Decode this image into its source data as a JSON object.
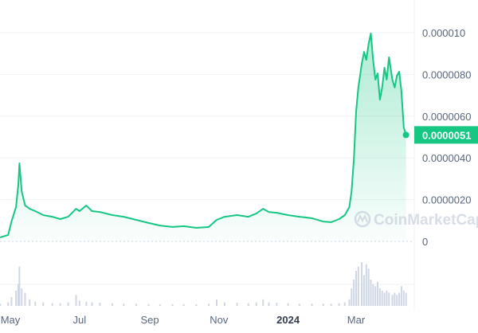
{
  "chart_data": {
    "type": "area",
    "title": "",
    "xlabel": "",
    "ylabel": "",
    "ylim": [
      0,
      1e-05
    ],
    "grid": true,
    "colors": {
      "line": "#16c784",
      "volume": "#cfd6e4",
      "grid": "#eff2f5",
      "axis_text": "#58667e"
    },
    "y_ticks": [
      "0",
      "0.0000020",
      "0.0000040",
      "0.0000060",
      "0.0000080",
      "0.000010"
    ],
    "y_tick_values": [
      0,
      2e-06,
      4e-06,
      6e-06,
      8e-06,
      1e-05
    ],
    "x_ticks": [
      {
        "label": "May",
        "date": "2023-05-01",
        "bold": false
      },
      {
        "label": "Jul",
        "date": "2023-07-01",
        "bold": false
      },
      {
        "label": "Sep",
        "date": "2023-09-01",
        "bold": false
      },
      {
        "label": "Nov",
        "date": "2023-11-01",
        "bold": false
      },
      {
        "label": "2024",
        "date": "2024-01-01",
        "bold": true
      },
      {
        "label": "Mar",
        "date": "2024-03-01",
        "bold": false
      }
    ],
    "current_price_label": "0.0000051",
    "series": [
      {
        "points": [
          [
            "2023-04-22",
            1.9e-07
          ],
          [
            "2023-04-29",
            3.1e-07
          ],
          [
            "2023-05-02",
            9.5e-07
          ],
          [
            "2023-05-06",
            1.64e-06
          ],
          [
            "2023-05-08",
            2.71e-06
          ],
          [
            "2023-05-09",
            3.74e-06
          ],
          [
            "2023-05-11",
            2.4e-06
          ],
          [
            "2023-05-14",
            1.72e-06
          ],
          [
            "2023-05-18",
            1.56e-06
          ],
          [
            "2023-05-23",
            1.45e-06
          ],
          [
            "2023-05-30",
            1.26e-06
          ],
          [
            "2023-06-07",
            1.18e-06
          ],
          [
            "2023-06-14",
            1.07e-06
          ],
          [
            "2023-06-21",
            1.18e-06
          ],
          [
            "2023-06-28",
            1.56e-06
          ],
          [
            "2023-07-01",
            1.45e-06
          ],
          [
            "2023-07-07",
            1.72e-06
          ],
          [
            "2023-07-12",
            1.45e-06
          ],
          [
            "2023-07-19",
            1.41e-06
          ],
          [
            "2023-07-30",
            1.26e-06
          ],
          [
            "2023-08-09",
            1.18e-06
          ],
          [
            "2023-08-20",
            1.03e-06
          ],
          [
            "2023-08-31",
            8.8e-07
          ],
          [
            "2023-09-10",
            7.6e-07
          ],
          [
            "2023-09-21",
            6.9e-07
          ],
          [
            "2023-10-01",
            7.3e-07
          ],
          [
            "2023-10-12",
            6.5e-07
          ],
          [
            "2023-10-23",
            6.9e-07
          ],
          [
            "2023-10-30",
            1.03e-06
          ],
          [
            "2023-11-06",
            1.18e-06
          ],
          [
            "2023-11-17",
            1.26e-06
          ],
          [
            "2023-11-27",
            1.18e-06
          ],
          [
            "2023-12-04",
            1.34e-06
          ],
          [
            "2023-12-10",
            1.56e-06
          ],
          [
            "2023-12-15",
            1.41e-06
          ],
          [
            "2023-12-22",
            1.37e-06
          ],
          [
            "2024-01-01",
            1.26e-06
          ],
          [
            "2024-01-11",
            1.18e-06
          ],
          [
            "2024-01-22",
            1.11e-06
          ],
          [
            "2024-02-01",
            9.5e-07
          ],
          [
            "2024-02-08",
            9.2e-07
          ],
          [
            "2024-02-15",
            1.07e-06
          ],
          [
            "2024-02-20",
            1.26e-06
          ],
          [
            "2024-02-24",
            1.64e-06
          ],
          [
            "2024-02-26",
            2.4e-06
          ],
          [
            "2024-02-28",
            3.93e-06
          ],
          [
            "2024-03-01",
            6.22e-06
          ],
          [
            "2024-03-03",
            7.37e-06
          ],
          [
            "2024-03-06",
            8.51e-06
          ],
          [
            "2024-03-08",
            9.08e-06
          ],
          [
            "2024-03-10",
            8.7e-06
          ],
          [
            "2024-03-12",
            9.47e-06
          ],
          [
            "2024-03-14",
            9.96e-06
          ],
          [
            "2024-03-16",
            8.7e-06
          ],
          [
            "2024-03-18",
            7.75e-06
          ],
          [
            "2024-03-20",
            8.05e-06
          ],
          [
            "2024-03-22",
            6.79e-06
          ],
          [
            "2024-03-24",
            7.37e-06
          ],
          [
            "2024-03-26",
            8.32e-06
          ],
          [
            "2024-03-28",
            7.75e-06
          ],
          [
            "2024-03-30",
            8.82e-06
          ],
          [
            "2024-04-02",
            7.75e-06
          ],
          [
            "2024-04-04",
            7.37e-06
          ],
          [
            "2024-04-06",
            7.94e-06
          ],
          [
            "2024-04-08",
            8.13e-06
          ],
          [
            "2024-04-10",
            7.18e-06
          ],
          [
            "2024-04-12",
            5.46e-06
          ],
          [
            "2024-04-14",
            5.1e-06
          ]
        ]
      }
    ],
    "volume_relative": [
      0.05,
      0.08,
      0.2,
      0.35,
      0.5,
      0.9,
      0.4,
      0.3,
      0.15,
      0.1,
      0.08,
      0.06,
      0.06,
      0.08,
      0.25,
      0.12,
      0.1,
      0.08,
      0.07,
      0.06,
      0.05,
      0.05,
      0.04,
      0.04,
      0.04,
      0.04,
      0.04,
      0.05,
      0.15,
      0.08,
      0.07,
      0.06,
      0.08,
      0.15,
      0.08,
      0.07,
      0.06,
      0.05,
      0.05,
      0.05,
      0.05,
      0.06,
      0.08,
      0.15,
      0.4,
      0.6,
      0.8,
      0.9,
      1.0,
      0.7,
      0.95,
      0.85,
      0.6,
      0.5,
      0.45,
      0.55,
      0.4,
      0.35,
      0.3,
      0.35,
      0.3,
      0.25,
      0.3,
      0.25,
      0.3,
      0.45,
      0.35,
      0.3
    ]
  },
  "watermark": {
    "text": "CoinMarketCap"
  }
}
